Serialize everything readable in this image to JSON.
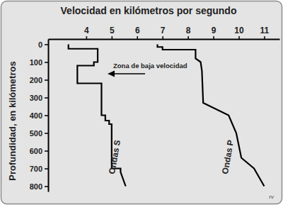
{
  "chart_data": {
    "type": "line",
    "title": "Velocidad en kilómetros por segundo",
    "y_label": "Profundidad, en kilómetros",
    "annotations": [
      "Zona de baja velocidad",
      "rv"
    ],
    "xlim": [
      2.5,
      11.6
    ],
    "xticks": [
      4,
      5,
      6,
      7,
      8,
      9,
      10,
      11
    ],
    "ylim": [
      830,
      -30
    ],
    "yticks": [
      0,
      100,
      200,
      300,
      400,
      500,
      600,
      700,
      800
    ],
    "grid": false,
    "series": [
      {
        "name": "Ondas S",
        "color": "#000000",
        "x": [
          3.3,
          3.3,
          4.45,
          4.45,
          4.3,
          4.3,
          3.65,
          3.65,
          4.6,
          4.6,
          4.75,
          4.75,
          4.9,
          4.9,
          5.0,
          5.0,
          5.35,
          5.35,
          5.55
        ],
        "values": [
          0,
          25,
          25,
          100,
          100,
          120,
          120,
          220,
          220,
          400,
          400,
          430,
          430,
          450,
          450,
          700,
          700,
          720,
          800
        ]
      },
      {
        "name": "Ondas P",
        "color": "#000000",
        "x": [
          6.8,
          6.8,
          7.0,
          7.0,
          8.3,
          8.3,
          8.5,
          8.55,
          8.6,
          9.6,
          9.9,
          10.1,
          10.6,
          11.0
        ],
        "values": [
          0,
          15,
          15,
          30,
          30,
          80,
          100,
          150,
          330,
          400,
          500,
          640,
          700,
          800
        ]
      }
    ]
  }
}
